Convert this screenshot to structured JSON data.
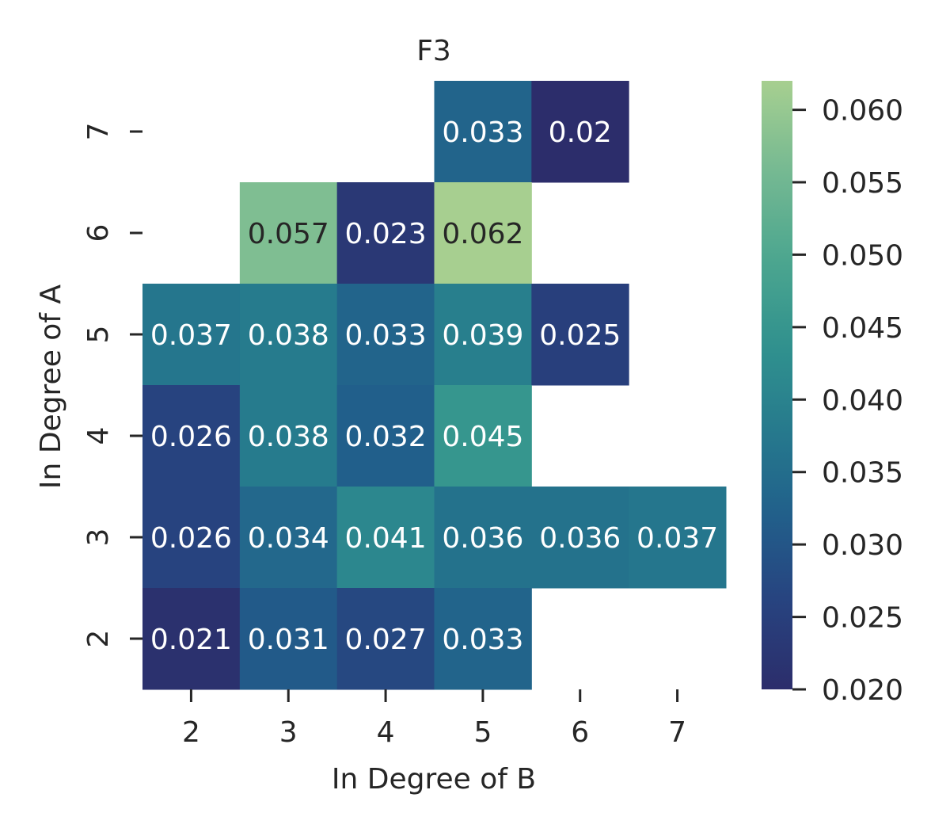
{
  "chart_data": {
    "type": "heatmap",
    "title": "F3",
    "xlabel": "In Degree of B",
    "ylabel": "In Degree of A",
    "x_categories": [
      "2",
      "3",
      "4",
      "5",
      "6",
      "7"
    ],
    "y_categories": [
      "7",
      "6",
      "5",
      "4",
      "3",
      "2"
    ],
    "cells": [
      {
        "x": "5",
        "y": "7",
        "value": 0.033,
        "label": "0.033"
      },
      {
        "x": "6",
        "y": "7",
        "value": 0.02,
        "label": "0.02"
      },
      {
        "x": "3",
        "y": "6",
        "value": 0.057,
        "label": "0.057"
      },
      {
        "x": "4",
        "y": "6",
        "value": 0.023,
        "label": "0.023"
      },
      {
        "x": "5",
        "y": "6",
        "value": 0.062,
        "label": "0.062"
      },
      {
        "x": "2",
        "y": "5",
        "value": 0.037,
        "label": "0.037"
      },
      {
        "x": "3",
        "y": "5",
        "value": 0.038,
        "label": "0.038"
      },
      {
        "x": "4",
        "y": "5",
        "value": 0.033,
        "label": "0.033"
      },
      {
        "x": "5",
        "y": "5",
        "value": 0.039,
        "label": "0.039"
      },
      {
        "x": "6",
        "y": "5",
        "value": 0.025,
        "label": "0.025"
      },
      {
        "x": "2",
        "y": "4",
        "value": 0.026,
        "label": "0.026"
      },
      {
        "x": "3",
        "y": "4",
        "value": 0.038,
        "label": "0.038"
      },
      {
        "x": "4",
        "y": "4",
        "value": 0.032,
        "label": "0.032"
      },
      {
        "x": "5",
        "y": "4",
        "value": 0.045,
        "label": "0.045"
      },
      {
        "x": "2",
        "y": "3",
        "value": 0.026,
        "label": "0.026"
      },
      {
        "x": "3",
        "y": "3",
        "value": 0.034,
        "label": "0.034"
      },
      {
        "x": "4",
        "y": "3",
        "value": 0.041,
        "label": "0.041"
      },
      {
        "x": "5",
        "y": "3",
        "value": 0.036,
        "label": "0.036"
      },
      {
        "x": "6",
        "y": "3",
        "value": 0.036,
        "label": "0.036"
      },
      {
        "x": "7",
        "y": "3",
        "value": 0.037,
        "label": "0.037"
      },
      {
        "x": "2",
        "y": "2",
        "value": 0.021,
        "label": "0.021"
      },
      {
        "x": "3",
        "y": "2",
        "value": 0.031,
        "label": "0.031"
      },
      {
        "x": "4",
        "y": "2",
        "value": 0.027,
        "label": "0.027"
      },
      {
        "x": "5",
        "y": "2",
        "value": 0.033,
        "label": "0.033"
      }
    ],
    "colorbar": {
      "min": 0.02,
      "max": 0.062,
      "ticks": [
        "0.020",
        "0.025",
        "0.030",
        "0.035",
        "0.040",
        "0.045",
        "0.050",
        "0.055",
        "0.060"
      ],
      "colormap": "crest"
    },
    "colormap_stops": [
      "#2c2d6b",
      "#27437f",
      "#215f8b",
      "#267b8d",
      "#31928e",
      "#4ea78f",
      "#77ba92",
      "#a7cf90"
    ]
  }
}
